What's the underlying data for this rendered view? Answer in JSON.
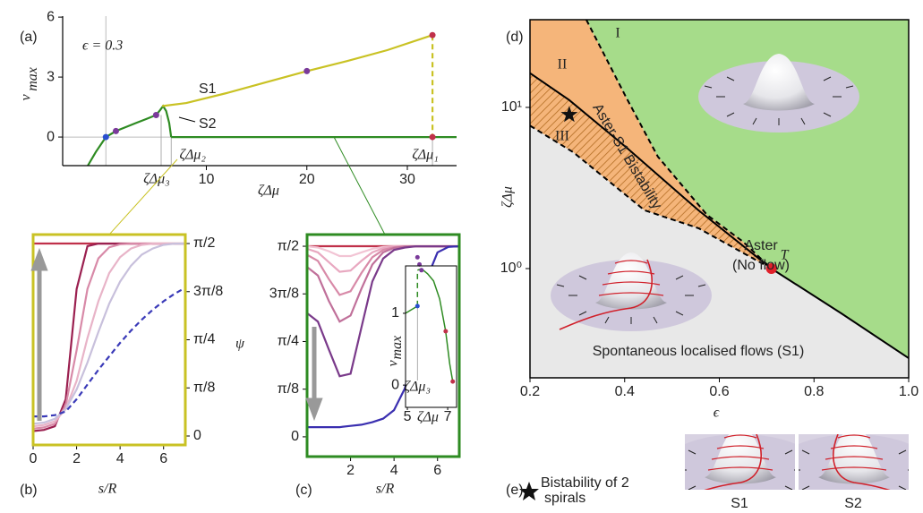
{
  "chart_data": [
    {
      "type": "line",
      "panel": "(a)",
      "parameter_label": "ϵ = 0.3",
      "x_label": "ζΔμ",
      "y_label": "v",
      "y_label_sub": "max",
      "xlim": [
        -4.3,
        34.9
      ],
      "xticks": [
        10,
        20,
        30
      ],
      "ylim": [
        -1.43,
        6.05
      ],
      "yticks": [
        0,
        3,
        6
      ],
      "series": [
        {
          "color": "#2e8b22",
          "x": [
            -1.8,
            -1,
            0,
            1,
            2,
            3,
            4,
            5
          ],
          "values": [
            -1.43,
            -0.75,
            0,
            0.3,
            0.5,
            0.7,
            0.9,
            1.1
          ]
        },
        {
          "name": "S2",
          "color": "#2e8b22",
          "x": [
            5,
            5.4,
            5.7,
            6.0,
            6.3,
            6.5
          ],
          "values": [
            1.1,
            1.35,
            1.55,
            1.3,
            0.7,
            0
          ]
        },
        {
          "color": "#2e8b22",
          "x": [
            6.5,
            34.9
          ],
          "values": [
            0,
            0
          ]
        },
        {
          "name": "S1",
          "color": "#c9c224",
          "x": [
            5.6,
            8,
            12,
            16,
            20,
            24,
            28,
            32.5
          ],
          "values": [
            1.55,
            1.7,
            2.2,
            2.75,
            3.3,
            3.8,
            4.35,
            5.1
          ]
        },
        {
          "color": "#c9c224",
          "dashed": true,
          "x": [
            32.5,
            32.5
          ],
          "values": [
            5.1,
            0
          ]
        }
      ],
      "points": {
        "x": [
          0,
          1,
          5,
          20,
          32.5,
          32.5
        ],
        "values": [
          0,
          0.3,
          1.1,
          3.3,
          5.1,
          0
        ],
        "colors": [
          "#2a4fd0",
          "#7a3a9a",
          "#7a3a9a",
          "#7a3a9a",
          "#c0304a",
          "#c0304a"
        ]
      },
      "annotations": [
        {
          "text": "ζΔμ₃",
          "x": 5.5
        },
        {
          "text": "ζΔμ₂",
          "x": 6.5
        },
        {
          "text": "ζΔμ₁",
          "x": 32.5
        }
      ]
    },
    {
      "type": "line",
      "panel": "(b)",
      "x_label": "s/R",
      "y_label": "ψ",
      "x": [
        0,
        0.5,
        1,
        1.5,
        2,
        2.5,
        3,
        3.5,
        4,
        4.5,
        5,
        5.5,
        6,
        6.5,
        7
      ],
      "xlim": [
        0,
        7
      ],
      "xticks": [
        0,
        2,
        4,
        6
      ],
      "ylim": [
        -0.073,
        1.644
      ],
      "yticks": [
        0,
        {
          "value": 0.3927,
          "label": "π/8"
        },
        {
          "value": 0.7854,
          "label": "π/4"
        },
        {
          "value": 1.1781,
          "label": "3π/8"
        },
        {
          "value": 1.5708,
          "label": "π/2"
        }
      ],
      "series": [
        {
          "color": "#c0304a",
          "values": [
            1.5708,
            1.5708,
            1.5708,
            1.5708,
            1.5708,
            1.5708,
            1.5708,
            1.5708,
            1.5708,
            1.5708,
            1.5708,
            1.5708,
            1.5708,
            1.5708,
            1.5708
          ]
        },
        {
          "color": "#9b2050",
          "values": [
            0.04,
            0.05,
            0.08,
            0.3,
            1.2,
            1.55,
            1.57,
            1.57,
            1.57,
            1.57,
            1.57,
            1.57,
            1.57,
            1.57,
            1.57
          ]
        },
        {
          "color": "#d88aa8",
          "values": [
            0.06,
            0.07,
            0.1,
            0.25,
            0.7,
            1.2,
            1.45,
            1.54,
            1.565,
            1.57,
            1.57,
            1.57,
            1.57,
            1.57,
            1.57
          ]
        },
        {
          "color": "#e8b4c8",
          "values": [
            0.08,
            0.09,
            0.12,
            0.22,
            0.45,
            0.8,
            1.1,
            1.33,
            1.46,
            1.53,
            1.56,
            1.57,
            1.57,
            1.57,
            1.57
          ]
        },
        {
          "color": "#c8c0dc",
          "values": [
            0.1,
            0.11,
            0.14,
            0.22,
            0.38,
            0.6,
            0.85,
            1.08,
            1.26,
            1.39,
            1.48,
            1.53,
            1.56,
            1.57,
            1.57
          ]
        },
        {
          "color": "#3a3ab8",
          "dashed": true,
          "values": [
            0.16,
            0.16,
            0.17,
            0.2,
            0.3,
            0.42,
            0.54,
            0.65,
            0.76,
            0.86,
            0.95,
            1.03,
            1.1,
            1.16,
            1.21
          ]
        }
      ]
    },
    {
      "type": "line",
      "panel": "(c)",
      "x_label": "s/R",
      "x": [
        0,
        0.5,
        1,
        1.5,
        2,
        2.5,
        3,
        3.5,
        4,
        4.5,
        5,
        5.5,
        6,
        6.5,
        7
      ],
      "xlim": [
        0,
        7
      ],
      "xticks": [
        2,
        4,
        6
      ],
      "ylim": [
        -0.163,
        1.667
      ],
      "yticks": [
        0,
        {
          "value": 0.3927,
          "label": "π/8"
        },
        {
          "value": 0.7854,
          "label": "π/4"
        },
        {
          "value": 1.1781,
          "label": "3π/8"
        },
        {
          "value": 1.5708,
          "label": "π/2"
        }
      ],
      "series": [
        {
          "color": "#c0304a",
          "values": [
            1.5708,
            1.5708,
            1.5708,
            1.5708,
            1.5708,
            1.5708,
            1.5708,
            1.5708,
            1.5708,
            1.5708,
            1.5708,
            1.5708,
            1.5708,
            1.5708,
            1.5708
          ]
        },
        {
          "color": "#f2c4d4",
          "values": [
            1.57,
            1.56,
            1.53,
            1.49,
            1.49,
            1.52,
            1.55,
            1.565,
            1.57,
            1.57,
            1.57,
            1.57,
            1.57,
            1.57,
            1.57
          ]
        },
        {
          "color": "#e8a8c0",
          "values": [
            1.55,
            1.52,
            1.44,
            1.36,
            1.37,
            1.45,
            1.52,
            1.555,
            1.568,
            1.57,
            1.57,
            1.57,
            1.57,
            1.57,
            1.57
          ]
        },
        {
          "color": "#d88aa8",
          "values": [
            1.5,
            1.45,
            1.3,
            1.17,
            1.2,
            1.35,
            1.48,
            1.54,
            1.562,
            1.57,
            1.57,
            1.57,
            1.57,
            1.57,
            1.57
          ]
        },
        {
          "color": "#c0709a",
          "values": [
            1.4,
            1.33,
            1.12,
            0.95,
            1.0,
            1.22,
            1.42,
            1.52,
            1.557,
            1.568,
            1.57,
            1.57,
            1.57,
            1.57,
            1.57
          ]
        },
        {
          "color": "#7a3a8a",
          "values": [
            1.02,
            0.95,
            0.72,
            0.5,
            0.52,
            0.9,
            1.28,
            1.47,
            1.54,
            1.56,
            1.57,
            1.57,
            1.57,
            1.57,
            1.57
          ]
        },
        {
          "color": "#3a2fb0",
          "values": [
            0.08,
            0.08,
            0.08,
            0.08,
            0.09,
            0.1,
            0.12,
            0.15,
            0.22,
            0.4,
            0.8,
            1.3,
            1.52,
            1.565,
            1.57
          ]
        }
      ]
    },
    {
      "type": "line",
      "x_label": "ζΔμ",
      "y_label": "v",
      "y_label_sub": "max",
      "xlim": [
        4.91,
        7.44
      ],
      "xticks": [
        5,
        7
      ],
      "ylim": [
        -0.31,
        1.66
      ],
      "yticks": [
        0,
        1
      ],
      "series": [
        {
          "color": "#2e8b22",
          "x": [
            4.91,
            5.5
          ],
          "values": [
            1.0,
            1.1
          ]
        },
        {
          "color": "#2e8b22",
          "dashed": true,
          "x": [
            5.5,
            5.5
          ],
          "values": [
            1.1,
            1.55
          ]
        },
        {
          "color": "#2e8b22",
          "x": [
            5.5,
            5.7,
            6.0,
            6.3,
            6.6,
            6.9,
            7.1,
            7.25
          ],
          "values": [
            1.6,
            1.62,
            1.55,
            1.45,
            1.2,
            0.75,
            0.3,
            0.05
          ]
        }
      ],
      "points": {
        "x": [
          5.5,
          5.5,
          5.6,
          5.7,
          6.9,
          7.25
        ],
        "values": [
          1.1,
          1.78,
          1.68,
          1.6,
          0.75,
          0.05
        ],
        "colors": [
          "#2a4fd0",
          "#7a3a9a",
          "#7a3a9a",
          "#7a3a9a",
          "#c0304a",
          "#c0304a"
        ]
      },
      "annotations": [
        {
          "text": "ζΔμ₃",
          "x": 5.5
        }
      ]
    },
    {
      "type": "phase",
      "panel": "(d)",
      "x_label": "ϵ",
      "y_label": "ζΔμ",
      "ylog": true,
      "xlim": [
        0.2,
        1.0
      ],
      "xticks": [
        0.2,
        0.4,
        0.6,
        0.8,
        {
          "value": 1.0,
          "label": "1.0"
        }
      ],
      "ylim": [
        0.21,
        35
      ],
      "yticks": [
        {
          "value": 1,
          "label": "10⁰"
        },
        {
          "value": 10,
          "label": "10¹"
        }
      ],
      "region_colors": [
        "#a6dc8a",
        "#f5b57a",
        "#e8e8e8"
      ],
      "boundaries": [
        {
          "color": "#000000",
          "dashed": true,
          "x": [
            0.319,
            0.404,
            0.47,
            0.574,
            0.65,
            0.71
          ],
          "values": [
            35,
            11.4,
            4.95,
            2.15,
            1.47,
            1.0
          ]
        },
        {
          "color": "#000000",
          "x": [
            0.2,
            0.283,
            0.404,
            0.556,
            0.71,
            0.858,
            1.0
          ],
          "values": [
            16.3,
            11.1,
            5.63,
            2.3,
            1.0,
            0.527,
            0.278
          ]
        },
        {
          "color": "#000000",
          "dashed": true,
          "x": [
            0.2,
            0.291,
            0.442,
            0.556,
            0.71
          ],
          "values": [
            7.7,
            5.28,
            2.3,
            1.78,
            1.0
          ]
        }
      ],
      "star": {
        "x": 0.283,
        "value": 9.0
      },
      "points": {
        "x": [
          0.71
        ],
        "values": [
          1.0
        ],
        "colors": [
          "#e0202a"
        ],
        "labels": [
          "T"
        ]
      },
      "labels": [
        "I",
        "II",
        "III",
        "Aster-S1 Bistability",
        "Aster",
        "(No flow)",
        "Spontaneous localised flows (S1)"
      ]
    }
  ],
  "panel_e": {
    "label": "(e)",
    "caption_lines": [
      "Bistability of 2",
      "spirals"
    ],
    "images": [
      "S1",
      "S2"
    ]
  }
}
